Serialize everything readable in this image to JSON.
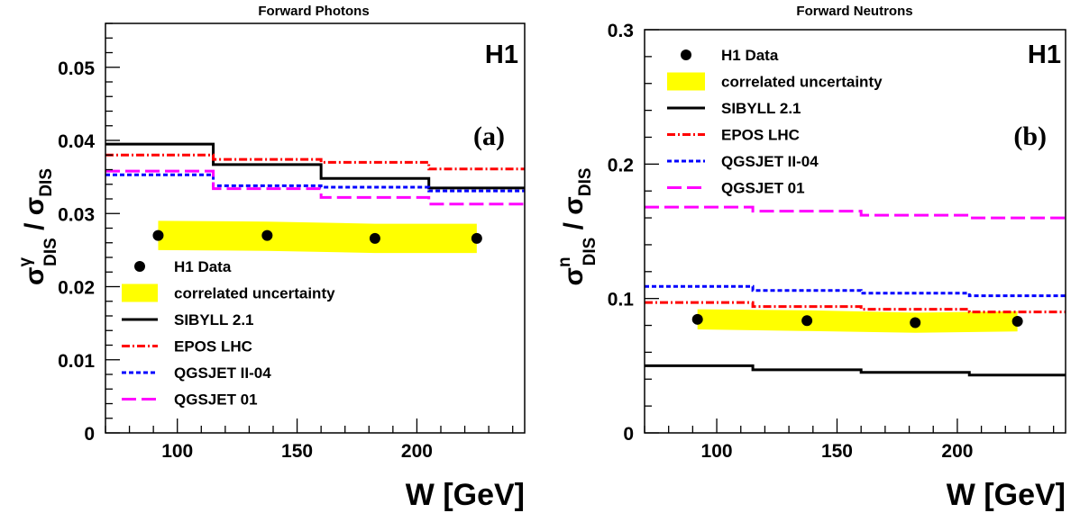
{
  "colors": {
    "data": "#000000",
    "band": "#ffff00",
    "sibyll": "#000000",
    "epos": "#ff0000",
    "qgsjet2": "#0000ff",
    "qgsjet01": "#ff00ff"
  },
  "chart_data": [
    {
      "type": "line",
      "title": "Forward Photons",
      "experiment": "H1",
      "panel_tag": "(a)",
      "xlabel": "W [GeV]",
      "ylabel": {
        "sym": "σ",
        "sup": "γ",
        "sub": "DIS",
        "slash": " / ",
        "sym2": "σ",
        "sub2": "DIS"
      },
      "xlim": [
        70,
        245
      ],
      "ylim": [
        0,
        0.056
      ],
      "x_ticks": [
        100,
        150,
        200
      ],
      "y_ticks": [
        0,
        0.01,
        0.02,
        0.03,
        0.04,
        0.05
      ],
      "y_tick_labels": [
        "0",
        "0.01",
        "0.02",
        "0.03",
        "0.04",
        "0.05"
      ],
      "bins": [
        70,
        115,
        160,
        205,
        245
      ],
      "data": {
        "x": [
          92,
          137.5,
          182.5,
          225
        ],
        "y": [
          0.027,
          0.027,
          0.0266,
          0.0266
        ]
      },
      "band": {
        "x": [
          92,
          137.5,
          182.5,
          225
        ],
        "lo": [
          0.025,
          0.0249,
          0.0246,
          0.0246
        ],
        "hi": [
          0.029,
          0.0289,
          0.0286,
          0.0286
        ]
      },
      "models": [
        {
          "key": "sibyll",
          "values": [
            0.0395,
            0.0367,
            0.0348,
            0.0335
          ]
        },
        {
          "key": "epos",
          "values": [
            0.038,
            0.0374,
            0.037,
            0.0361
          ]
        },
        {
          "key": "qgsjet2",
          "values": [
            0.0353,
            0.0338,
            0.0336,
            0.0331
          ]
        },
        {
          "key": "qgsjet01",
          "values": [
            0.0358,
            0.0334,
            0.0322,
            0.0313
          ]
        }
      ],
      "legend_position": "bottom-left",
      "legend": [
        {
          "key": "data",
          "kind": "marker",
          "label": "H1 Data"
        },
        {
          "key": "band",
          "kind": "band",
          "label": "correlated uncertainty"
        },
        {
          "key": "sibyll",
          "kind": "line",
          "label": "SIBYLL 2.1"
        },
        {
          "key": "epos",
          "kind": "line",
          "label": "EPOS LHC"
        },
        {
          "key": "qgsjet2",
          "kind": "line",
          "label": "QGSJET II-04"
        },
        {
          "key": "qgsjet01",
          "kind": "line",
          "label": "QGSJET 01"
        }
      ]
    },
    {
      "type": "line",
      "title": "Forward Neutrons",
      "experiment": "H1",
      "panel_tag": "(b)",
      "xlabel": "W [GeV]",
      "ylabel": {
        "sym": "σ",
        "sup": "n",
        "sub": "DIS",
        "slash": " / ",
        "sym2": "σ",
        "sub2": "DIS"
      },
      "xlim": [
        70,
        245
      ],
      "ylim": [
        0,
        0.3
      ],
      "x_ticks": [
        100,
        150,
        200
      ],
      "y_ticks": [
        0,
        0.1,
        0.2,
        0.3
      ],
      "y_tick_labels": [
        "0",
        "0.1",
        "0.2",
        "0.3"
      ],
      "bins": [
        70,
        115,
        160,
        205,
        245
      ],
      "data": {
        "x": [
          92,
          137.5,
          182.5,
          225
        ],
        "y": [
          0.0845,
          0.0835,
          0.082,
          0.083
        ]
      },
      "band": {
        "x": [
          92,
          137.5,
          182.5,
          225
        ],
        "lo": [
          0.077,
          0.0758,
          0.0745,
          0.0755
        ],
        "hi": [
          0.092,
          0.0912,
          0.0895,
          0.0905
        ]
      },
      "models": [
        {
          "key": "sibyll",
          "values": [
            0.05,
            0.047,
            0.045,
            0.043
          ]
        },
        {
          "key": "epos",
          "values": [
            0.097,
            0.094,
            0.092,
            0.09
          ]
        },
        {
          "key": "qgsjet2",
          "values": [
            0.109,
            0.106,
            0.104,
            0.102
          ]
        },
        {
          "key": "qgsjet01",
          "values": [
            0.168,
            0.165,
            0.162,
            0.16
          ]
        }
      ],
      "legend_position": "top-left",
      "legend": [
        {
          "key": "data",
          "kind": "marker",
          "label": "H1 Data"
        },
        {
          "key": "band",
          "kind": "band",
          "label": "correlated uncertainty"
        },
        {
          "key": "sibyll",
          "kind": "line",
          "label": "SIBYLL 2.1"
        },
        {
          "key": "epos",
          "kind": "line",
          "label": "EPOS LHC"
        },
        {
          "key": "qgsjet2",
          "kind": "line",
          "label": "QGSJET II-04"
        },
        {
          "key": "qgsjet01",
          "kind": "line",
          "label": "QGSJET 01"
        }
      ]
    }
  ]
}
